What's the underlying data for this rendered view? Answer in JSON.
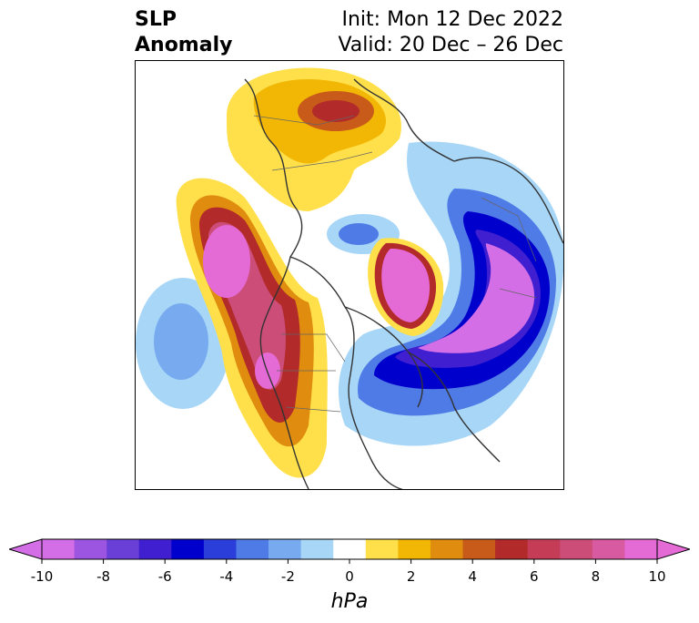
{
  "title": {
    "left_line1": "SLP",
    "left_line2": "Anomaly",
    "right_line1": "Init: Mon 12 Dec 2022",
    "right_line2": "Valid: 20 Dec – 26 Dec"
  },
  "colorbar": {
    "units": "hPa",
    "min": -10,
    "max": 10,
    "ticks": [
      "-10",
      "-8",
      "-6",
      "-4",
      "-2",
      "0",
      "2",
      "4",
      "6",
      "8",
      "10"
    ],
    "tick_values": [
      -10,
      -8,
      -6,
      -4,
      -2,
      0,
      2,
      4,
      6,
      8,
      10
    ],
    "colors": [
      "#d46ee6",
      "#9b55e0",
      "#6a3fd8",
      "#3f1fcf",
      "#0000cc",
      "#2b3ed9",
      "#4f7be6",
      "#78aaf0",
      "#a8d6f7",
      "#ffffff",
      "#ffe04a",
      "#f2b705",
      "#e08c0e",
      "#c85a1a",
      "#b22a2a",
      "#c43c55",
      "#cc4d78",
      "#d85aa0",
      "#e46ad6"
    ]
  },
  "palette": {
    "strong_neg": "#d46ee6",
    "deep_blue": "#0000cc",
    "mid_blue": "#4f7be6",
    "light_blue": "#a8d6f7",
    "yellow": "#ffe04a",
    "orange": "#e08c0e",
    "red": "#b22a2a",
    "strong_pos": "#e46ad6"
  }
}
